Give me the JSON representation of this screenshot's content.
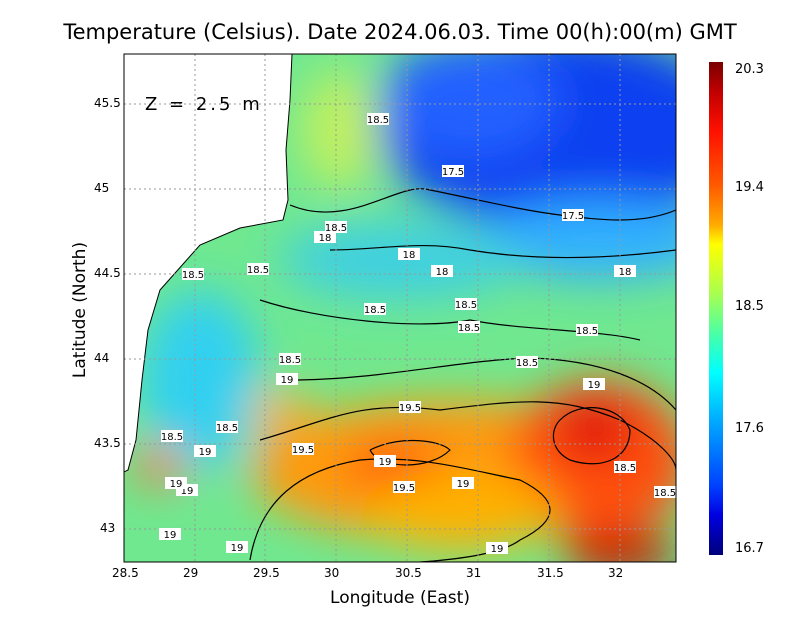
{
  "title": "Temperature (Celsius). Date 2024.06.03. Time 00(h):00(m) GMT",
  "depth_label": "Z = 2.5 m",
  "chart_data": {
    "type": "heatmap",
    "title": "Temperature (Celsius). Date 2024.06.03. Time 00(h):00(m) GMT",
    "xlabel": "Longitude (East)",
    "ylabel": "Latitude (North)",
    "xlim": [
      28.5,
      32.4
    ],
    "ylim": [
      42.8,
      45.8
    ],
    "xticks": [
      "28.5",
      "29",
      "29.5",
      "30",
      "30.5",
      "31",
      "31.5",
      "32"
    ],
    "yticks": [
      "45.5",
      "45",
      "44.5",
      "44",
      "43.5",
      "43"
    ],
    "colorbar": {
      "min": 16.7,
      "max": 20.3,
      "ticks": [
        "20.3",
        "19.4",
        "18.5",
        "17.6",
        "16.7"
      ]
    },
    "contour_labels": [
      "18.5",
      "17.5",
      "17.5",
      "18.5",
      "18",
      "18",
      "18",
      "18",
      "18.5",
      "18.5",
      "18.5",
      "18.5",
      "18.5",
      "18.5",
      "18.5",
      "18.5",
      "18.5",
      "18.5",
      "19",
      "19",
      "19",
      "19",
      "19.5",
      "19.5",
      "19",
      "19.5",
      "19",
      "18.5",
      "18.5",
      "19",
      "19",
      "19",
      "19"
    ]
  },
  "colors": {
    "land": "#ffffff",
    "grid": "#999999"
  }
}
